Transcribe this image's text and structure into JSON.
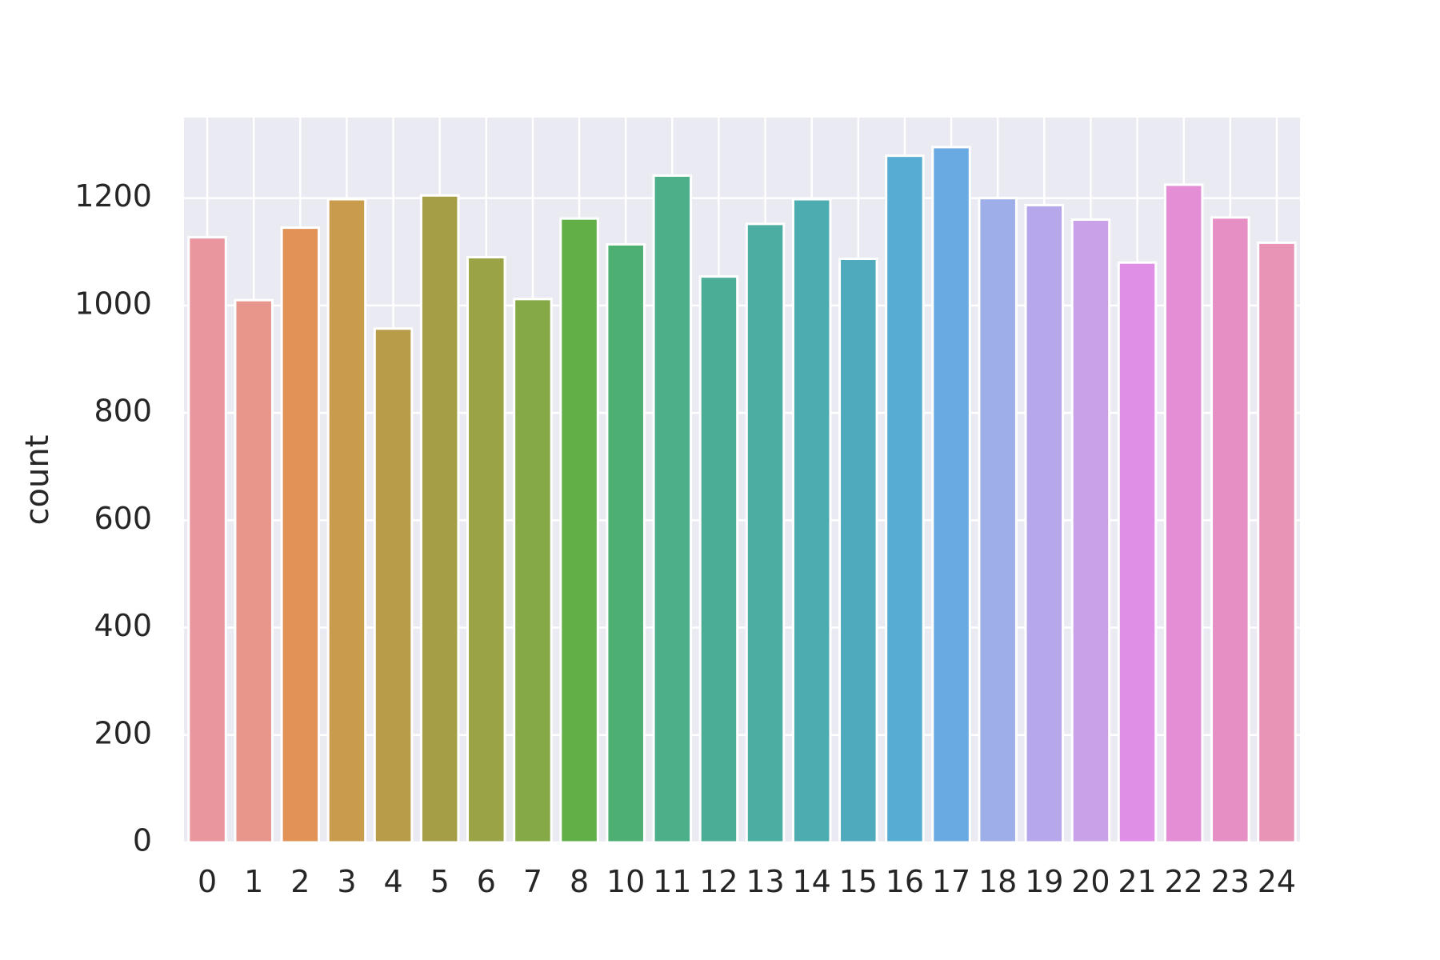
{
  "chart_data": {
    "type": "bar",
    "categories": [
      "0",
      "1",
      "2",
      "3",
      "4",
      "5",
      "6",
      "7",
      "8",
      "10",
      "11",
      "12",
      "13",
      "14",
      "15",
      "16",
      "17",
      "18",
      "19",
      "20",
      "21",
      "22",
      "23",
      "24"
    ],
    "values": [
      1127,
      1010,
      1145,
      1198,
      957,
      1205,
      1090,
      1012,
      1162,
      1114,
      1242,
      1054,
      1152,
      1198,
      1087,
      1279,
      1295,
      1200,
      1187,
      1160,
      1080,
      1225,
      1164,
      1117
    ],
    "colors": [
      "#e9969f",
      "#e8968b",
      "#e29257",
      "#c99b4d",
      "#b89c4a",
      "#a69e47",
      "#9aa447",
      "#86a947",
      "#62af48",
      "#4eaf72",
      "#4caf89",
      "#4cad96",
      "#4cada3",
      "#4cacb0",
      "#4faabe",
      "#56acd2",
      "#6aaae2",
      "#9eaee9",
      "#b5a7ea",
      "#c9a1e8",
      "#df8fe6",
      "#e48ed5",
      "#e68fc4",
      "#e894b6"
    ],
    "xlabel": "",
    "ylabel": "count",
    "ylim": [
      0,
      1350
    ],
    "yticks": [
      0,
      200,
      400,
      600,
      800,
      1000,
      1200
    ],
    "grid": true,
    "background": "#eaeaf2",
    "gridColor": "#ffffff"
  }
}
